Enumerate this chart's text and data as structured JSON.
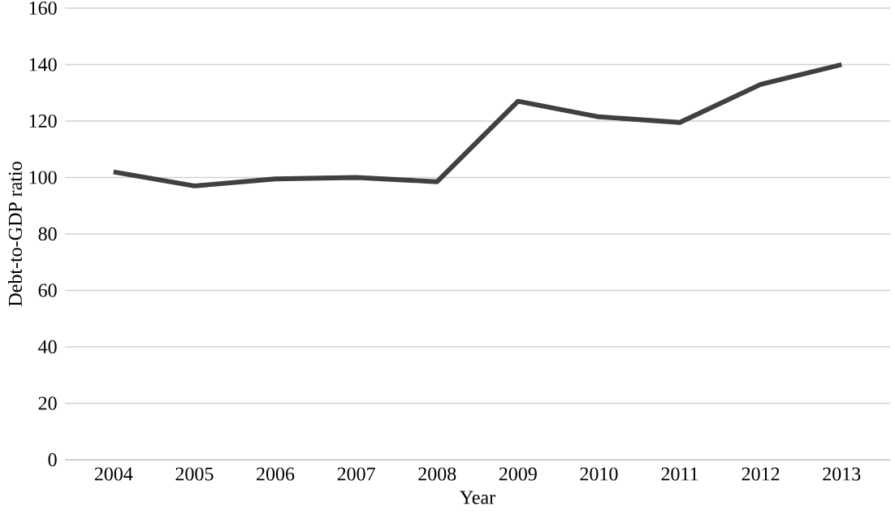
{
  "chart_data": {
    "type": "line",
    "xlabel": "Year",
    "ylabel": "Debt-to-GDP ratio",
    "categories": [
      "2004",
      "2005",
      "2006",
      "2007",
      "2008",
      "2009",
      "2010",
      "2011",
      "2012",
      "2013"
    ],
    "series": [
      {
        "color": "#404040",
        "values": [
          102,
          97,
          99.5,
          100,
          98.5,
          127,
          121.5,
          119.5,
          133,
          140
        ]
      }
    ],
    "ylim": [
      0,
      160
    ],
    "yticks": [
      0,
      20,
      40,
      60,
      80,
      100,
      120,
      140,
      160
    ],
    "grid": "y",
    "line_style": "solid"
  }
}
